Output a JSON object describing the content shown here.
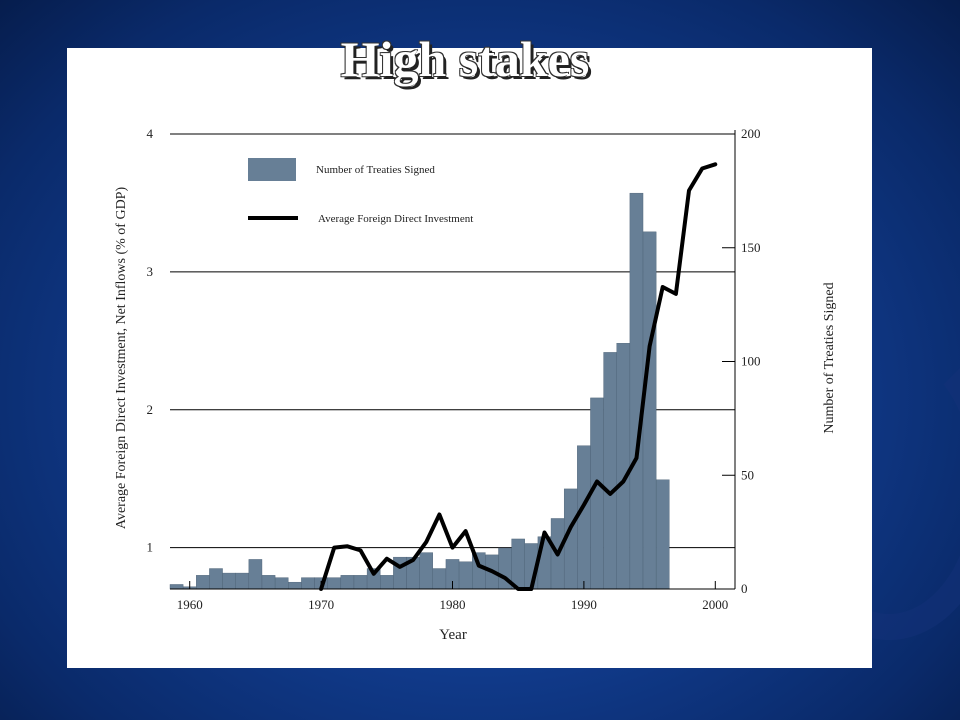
{
  "slide": {
    "title": "High stakes"
  },
  "colors": {
    "bar": "#677f96",
    "bar_edge": "#4a5f73",
    "line": "#000000"
  },
  "chart_data": {
    "type": "bar+line",
    "title": "",
    "xlabel": "Year",
    "ylabel_left": "Average Foreign Direct Investment, Net Inflows (% of GDP)",
    "ylabel_right": "Number of Treaties Signed",
    "x_ticks": [
      1960,
      1970,
      1980,
      1990,
      2000
    ],
    "y_left_ticks": [
      1,
      2,
      3,
      4
    ],
    "y_right_ticks": [
      0,
      50,
      100,
      150,
      200
    ],
    "xlim": [
      1958.5,
      2001.5
    ],
    "ylim_left": [
      0.7,
      4.0
    ],
    "ylim_right": [
      0,
      200
    ],
    "grid": "horizontal",
    "legend": {
      "placement": "top-left",
      "entries": [
        {
          "label": "Number of Treaties Signed",
          "kind": "bar"
        },
        {
          "label": "Average Foreign Direct Investment",
          "kind": "line"
        }
      ]
    },
    "series": [
      {
        "name": "Number of Treaties Signed",
        "kind": "bar",
        "axis": "right",
        "x": [
          1959,
          1960,
          1961,
          1962,
          1963,
          1964,
          1965,
          1966,
          1967,
          1968,
          1969,
          1970,
          1971,
          1972,
          1973,
          1974,
          1975,
          1976,
          1977,
          1978,
          1979,
          1980,
          1981,
          1982,
          1983,
          1984,
          1985,
          1986,
          1987,
          1988,
          1989,
          1990,
          1991,
          1992,
          1993,
          1994,
          1995,
          1996
        ],
        "values": [
          2,
          1,
          6,
          9,
          7,
          7,
          13,
          6,
          5,
          3,
          5,
          5,
          5,
          6,
          6,
          9,
          6,
          14,
          14,
          16,
          9,
          13,
          12,
          16,
          15,
          18,
          22,
          20,
          23,
          31,
          44,
          63,
          84,
          104,
          108,
          174,
          157,
          48
        ]
      },
      {
        "name": "Average Foreign Direct Investment",
        "kind": "line",
        "axis": "left",
        "x": [
          1970,
          1971,
          1972,
          1973,
          1974,
          1975,
          1976,
          1977,
          1978,
          1979,
          1980,
          1981,
          1982,
          1983,
          1984,
          1985,
          1986,
          1987,
          1988,
          1989,
          1990,
          1991,
          1992,
          1993,
          1994,
          1995,
          1996,
          1997,
          1998,
          1999,
          2000
        ],
        "values": [
          0.7,
          1.0,
          1.01,
          0.98,
          0.81,
          0.92,
          0.86,
          0.91,
          1.04,
          1.24,
          1.0,
          1.12,
          0.87,
          0.83,
          0.78,
          0.7,
          0.7,
          1.11,
          0.95,
          1.15,
          1.31,
          1.48,
          1.39,
          1.48,
          1.65,
          2.46,
          2.89,
          2.84,
          3.59,
          3.75,
          3.78
        ]
      }
    ]
  }
}
